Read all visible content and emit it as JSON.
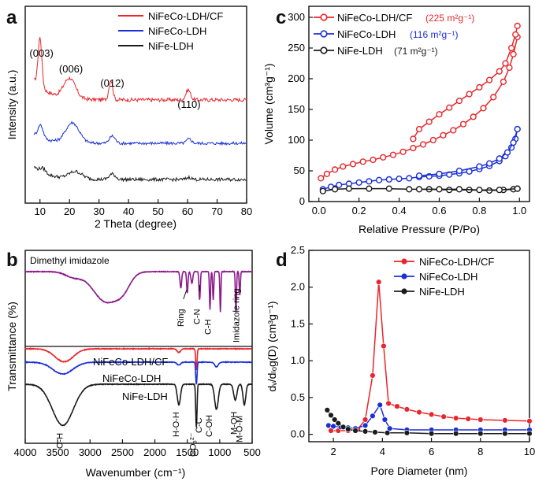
{
  "chart_data": [
    {
      "panel": "a",
      "type": "line",
      "xlabel": "2 Theta (degree)",
      "ylabel": "Intensity (a.u.)",
      "xlim": [
        5,
        80
      ],
      "xticks": [
        "10",
        "20",
        "30",
        "40",
        "50",
        "60",
        "70",
        "80"
      ],
      "legend_position": "top-right",
      "peak_labels": [
        {
          "text": "(003)",
          "x": 10.5
        },
        {
          "text": "(006)",
          "x": 20.5
        },
        {
          "text": "(012)",
          "x": 34.5
        },
        {
          "text": "(110)",
          "x": 60.5
        }
      ],
      "series": [
        {
          "name": "NiFeCo-LDH/CF",
          "color": "#e8262b",
          "offset": 2.2,
          "peaks": [
            {
              "x": 10,
              "h": 1.35,
              "w": 0.9
            },
            {
              "x": 20,
              "h": 0.55,
              "w": 2.8
            },
            {
              "x": 34,
              "h": 0.55,
              "w": 0.9
            },
            {
              "x": 60.2,
              "h": 0.28,
              "w": 1.1
            }
          ],
          "base_start": 0.55,
          "noise": 0.05
        },
        {
          "name": "NiFeCo-LDH",
          "color": "#1a2fd6",
          "offset": 1.0,
          "peaks": [
            {
              "x": 10.2,
              "h": 0.35,
              "w": 1.2
            },
            {
              "x": 21,
              "h": 0.55,
              "w": 3.2
            },
            {
              "x": 34.5,
              "h": 0.2,
              "w": 1.4
            },
            {
              "x": 60.5,
              "h": 0.12,
              "w": 1.2
            }
          ],
          "base_start": 0.25,
          "noise": 0.04
        },
        {
          "name": "NiFe-LDH",
          "color": "#1b1b1b",
          "offset": 0.0,
          "peaks": [
            {
              "x": 11,
              "h": 0.12,
              "w": 1.4
            },
            {
              "x": 22,
              "h": 0.2,
              "w": 3.2
            },
            {
              "x": 34.5,
              "h": 0.15,
              "w": 1.5
            },
            {
              "x": 60.5,
              "h": 0.06,
              "w": 1.2
            }
          ],
          "base_start": 0.35,
          "noise": 0.045
        }
      ]
    },
    {
      "panel": "b",
      "type": "line",
      "xlabel": "Wavenumber (cm⁻¹)",
      "ylabel": "Transmittance (%)",
      "xlim": [
        4000,
        500
      ],
      "xticks": [
        "4000",
        "3500",
        "3000",
        "2500",
        "2000",
        "1500",
        "1000",
        "500"
      ],
      "xtick_values": [
        4000,
        3500,
        3000,
        2500,
        2000,
        1500,
        1000,
        500
      ],
      "top_label": "Dimethyl imidazole",
      "band_labels": [
        "Ring",
        "C-N",
        "C-H",
        "Imidazole ring",
        "O-H",
        "H-O-H",
        "CO₃²⁻",
        "C-C",
        "C-OH",
        "M-OH",
        "M-O-M"
      ],
      "series": [
        {
          "name": "Dimethyl imidazole",
          "color": "#8b1a8b",
          "bands": [
            [
              3250,
              0.12,
              180
            ],
            [
              2900,
              0.18,
              220
            ],
            [
              2700,
              0.55,
              260
            ],
            [
              2480,
              0.22,
              150
            ],
            [
              1600,
              0.35,
              18
            ],
            [
              1500,
              0.45,
              15
            ],
            [
              1430,
              0.25,
              20
            ],
            [
              1310,
              0.6,
              14
            ],
            [
              1150,
              0.8,
              12
            ],
            [
              1100,
              0.6,
              12
            ],
            [
              990,
              0.85,
              11
            ],
            [
              750,
              0.85,
              12
            ],
            [
              690,
              0.5,
              12
            ]
          ]
        },
        {
          "name": "NiFeCo-LDH/CF",
          "color": "#e8262b",
          "bands": [
            [
              3400,
              0.55,
              200
            ],
            [
              1630,
              0.15,
              40
            ],
            [
              1360,
              0.9,
              14
            ]
          ]
        },
        {
          "name": "NiFeCo-LDH",
          "color": "#1a2fd6",
          "bands": [
            [
              3420,
              0.5,
              220
            ],
            [
              1630,
              0.12,
              40
            ],
            [
              1360,
              0.95,
              14
            ],
            [
              1050,
              0.2,
              40
            ]
          ]
        },
        {
          "name": "NiFe-LDH",
          "color": "#1b1b1b",
          "bands": [
            [
              3420,
              0.9,
              230
            ],
            [
              1630,
              0.45,
              35
            ],
            [
              1360,
              0.95,
              14
            ],
            [
              1050,
              0.55,
              40
            ],
            [
              760,
              0.35,
              35
            ],
            [
              620,
              0.45,
              30
            ]
          ]
        }
      ]
    },
    {
      "panel": "c",
      "type": "line",
      "xlabel": "Relative Pressure (P/Po)",
      "ylabel": "Volume (cm³g⁻¹)",
      "xlim": [
        -0.05,
        1.05
      ],
      "ylim": [
        0,
        300
      ],
      "xticks": [
        "0.0",
        "0.2",
        "0.4",
        "0.6",
        "0.8",
        "1.0"
      ],
      "xtick_values": [
        0,
        0.2,
        0.4,
        0.6,
        0.8,
        1.0
      ],
      "yticks": [
        "0",
        "50",
        "100",
        "150",
        "200",
        "250",
        "300"
      ],
      "ytick_values": [
        0,
        50,
        100,
        150,
        200,
        250,
        300
      ],
      "legend_position": "top-left",
      "series": [
        {
          "name": "NiFeCo-LDH/CF",
          "surface_area": "(225 m²g⁻¹)",
          "color": "#e8262b",
          "adsorption": [
            [
              0.01,
              38
            ],
            [
              0.04,
              45
            ],
            [
              0.08,
              52
            ],
            [
              0.12,
              57
            ],
            [
              0.17,
              61
            ],
            [
              0.22,
              65
            ],
            [
              0.27,
              68
            ],
            [
              0.32,
              72
            ],
            [
              0.37,
              76
            ],
            [
              0.42,
              81
            ],
            [
              0.47,
              87
            ],
            [
              0.52,
              93
            ],
            [
              0.57,
              100
            ],
            [
              0.62,
              108
            ],
            [
              0.67,
              116
            ],
            [
              0.72,
              126
            ],
            [
              0.77,
              138
            ],
            [
              0.82,
              152
            ],
            [
              0.87,
              170
            ],
            [
              0.92,
              195
            ],
            [
              0.95,
              218
            ],
            [
              0.97,
              240
            ],
            [
              0.99,
              268
            ]
          ],
          "desorption": [
            [
              0.99,
              286
            ],
            [
              0.98,
              272
            ],
            [
              0.96,
              250
            ],
            [
              0.93,
              225
            ],
            [
              0.9,
              212
            ],
            [
              0.85,
              198
            ],
            [
              0.8,
              186
            ],
            [
              0.75,
              175
            ],
            [
              0.7,
              164
            ],
            [
              0.65,
              153
            ],
            [
              0.6,
              142
            ],
            [
              0.55,
              130
            ],
            [
              0.5,
              118
            ],
            [
              0.47,
              102
            ]
          ]
        },
        {
          "name": "NiFeCo-LDH",
          "surface_area": "(116 m²g⁻¹)",
          "color": "#1a2fd6",
          "adsorption": [
            [
              0.02,
              20
            ],
            [
              0.06,
              24
            ],
            [
              0.1,
              27
            ],
            [
              0.15,
              29
            ],
            [
              0.2,
              31
            ],
            [
              0.25,
              33
            ],
            [
              0.3,
              35
            ],
            [
              0.35,
              36
            ],
            [
              0.4,
              37
            ],
            [
              0.45,
              38
            ],
            [
              0.5,
              40
            ],
            [
              0.55,
              41
            ],
            [
              0.6,
              42
            ],
            [
              0.65,
              44
            ],
            [
              0.7,
              46
            ],
            [
              0.75,
              49
            ],
            [
              0.8,
              53
            ],
            [
              0.85,
              58
            ],
            [
              0.9,
              66
            ],
            [
              0.93,
              74
            ],
            [
              0.96,
              88
            ],
            [
              0.98,
              102
            ],
            [
              0.99,
              118
            ]
          ],
          "desorption": [
            [
              0.99,
              118
            ],
            [
              0.97,
              96
            ],
            [
              0.94,
              80
            ],
            [
              0.9,
              70
            ],
            [
              0.85,
              62
            ],
            [
              0.8,
              57
            ],
            [
              0.7,
              50
            ],
            [
              0.6,
              45
            ],
            [
              0.5,
              42
            ]
          ]
        },
        {
          "name": "NiFe-LDH",
          "surface_area": "(71 m²g⁻¹)",
          "color": "#1b1b1b",
          "adsorption": [
            [
              0.02,
              17
            ],
            [
              0.08,
              20
            ],
            [
              0.15,
              21
            ],
            [
              0.25,
              21
            ],
            [
              0.35,
              21
            ],
            [
              0.45,
              20
            ],
            [
              0.55,
              20
            ],
            [
              0.65,
              19
            ],
            [
              0.75,
              19
            ],
            [
              0.85,
              18
            ],
            [
              0.92,
              19
            ],
            [
              0.97,
              20
            ],
            [
              0.99,
              21
            ]
          ],
          "desorption": [
            [
              0.99,
              21
            ],
            [
              0.9,
              19
            ],
            [
              0.8,
              19
            ],
            [
              0.7,
              20
            ],
            [
              0.6,
              20
            ],
            [
              0.5,
              20
            ]
          ]
        }
      ]
    },
    {
      "panel": "d",
      "type": "line",
      "xlabel": "Pore Diameter (nm)",
      "ylabel": "dᵥ/dₗₒg(D) (cm³g⁻¹)",
      "xlim": [
        1,
        10
      ],
      "ylim": [
        -0.1,
        2.5
      ],
      "xticks": [
        "2",
        "4",
        "6",
        "8",
        "10"
      ],
      "xtick_values": [
        2,
        4,
        6,
        8,
        10
      ],
      "yticks": [
        "0.0",
        "0.5",
        "1.0",
        "1.5",
        "2.0",
        "2.5"
      ],
      "ytick_values": [
        0,
        0.5,
        1.0,
        1.5,
        2.0,
        2.5
      ],
      "legend_position": "top-right",
      "series": [
        {
          "name": "NiFeCo-LDH/CF",
          "color": "#e8262b",
          "points": [
            [
              1.9,
              0.05
            ],
            [
              2.2,
              0.05
            ],
            [
              2.6,
              0.05
            ],
            [
              3.0,
              0.07
            ],
            [
              3.3,
              0.2
            ],
            [
              3.6,
              0.8
            ],
            [
              3.85,
              2.07
            ],
            [
              4.05,
              1.2
            ],
            [
              4.25,
              0.42
            ],
            [
              4.6,
              0.38
            ],
            [
              5.0,
              0.34
            ],
            [
              5.5,
              0.3
            ],
            [
              6.0,
              0.27
            ],
            [
              6.5,
              0.24
            ],
            [
              7.0,
              0.22
            ],
            [
              7.5,
              0.21
            ],
            [
              8.0,
              0.2
            ],
            [
              9.0,
              0.19
            ],
            [
              10.0,
              0.18
            ]
          ]
        },
        {
          "name": "NiFeCo-LDH",
          "color": "#1a2fd6",
          "points": [
            [
              1.8,
              0.12
            ],
            [
              2.0,
              0.11
            ],
            [
              2.3,
              0.1
            ],
            [
              2.6,
              0.09
            ],
            [
              2.9,
              0.08
            ],
            [
              3.3,
              0.12
            ],
            [
              3.6,
              0.25
            ],
            [
              3.9,
              0.4
            ],
            [
              4.1,
              0.2
            ],
            [
              4.3,
              0.08
            ],
            [
              5.0,
              0.06
            ],
            [
              6.0,
              0.06
            ],
            [
              7.0,
              0.06
            ],
            [
              8.0,
              0.06
            ],
            [
              9.0,
              0.06
            ],
            [
              10.0,
              0.06
            ]
          ]
        },
        {
          "name": "NiFe-LDH",
          "color": "#1b1b1b",
          "points": [
            [
              1.75,
              0.33
            ],
            [
              1.9,
              0.26
            ],
            [
              2.05,
              0.2
            ],
            [
              2.2,
              0.15
            ],
            [
              2.4,
              0.1
            ],
            [
              2.6,
              0.07
            ],
            [
              2.9,
              0.05
            ],
            [
              3.3,
              0.04
            ],
            [
              3.7,
              0.03
            ],
            [
              4.2,
              0.02
            ],
            [
              5.0,
              0.02
            ],
            [
              6.0,
              0.01
            ],
            [
              7.0,
              0.01
            ],
            [
              8.0,
              0.01
            ],
            [
              9.0,
              0.01
            ],
            [
              10.0,
              0.01
            ]
          ]
        }
      ]
    }
  ]
}
